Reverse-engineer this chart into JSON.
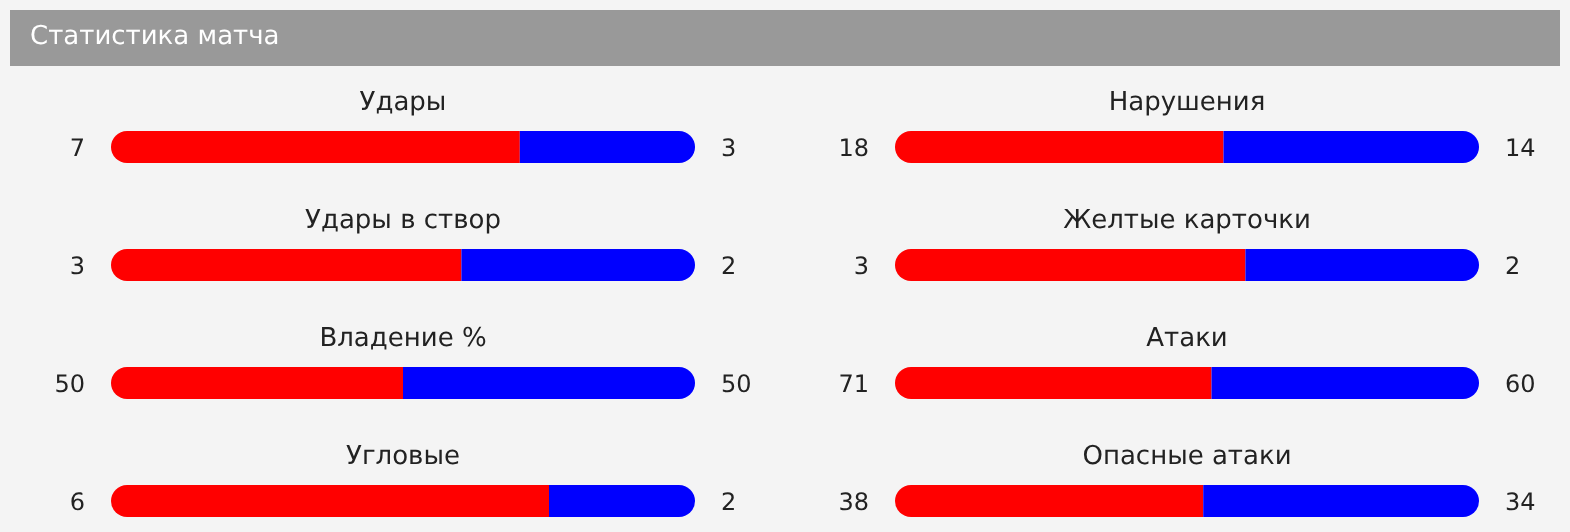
{
  "chart_data": [
    {
      "type": "bar",
      "orientation": "horizontal",
      "stacked": true,
      "data_labels": true,
      "title": "Удары",
      "annotations": [
        "Статистика матча"
      ],
      "categories": [
        null
      ],
      "series": [
        {
          "color": "#ff0000",
          "values": [
            7
          ]
        },
        {
          "color": "#0000ff",
          "values": [
            3
          ]
        }
      ]
    },
    {
      "type": "bar",
      "orientation": "horizontal",
      "stacked": true,
      "data_labels": true,
      "title": "Нарушения",
      "categories": [
        null
      ],
      "series": [
        {
          "color": "#ff0000",
          "values": [
            18
          ]
        },
        {
          "color": "#0000ff",
          "values": [
            14
          ]
        }
      ]
    },
    {
      "type": "bar",
      "orientation": "horizontal",
      "stacked": true,
      "data_labels": true,
      "title": "Удары в створ",
      "categories": [
        null
      ],
      "series": [
        {
          "color": "#ff0000",
          "values": [
            3
          ]
        },
        {
          "color": "#0000ff",
          "values": [
            2
          ]
        }
      ]
    },
    {
      "type": "bar",
      "orientation": "horizontal",
      "stacked": true,
      "data_labels": true,
      "title": "Желтые карточки",
      "categories": [
        null
      ],
      "series": [
        {
          "color": "#ff0000",
          "values": [
            3
          ]
        },
        {
          "color": "#0000ff",
          "values": [
            2
          ]
        }
      ]
    },
    {
      "type": "bar",
      "orientation": "horizontal",
      "stacked": true,
      "data_labels": true,
      "title": "Владение %",
      "categories": [
        null
      ],
      "series": [
        {
          "color": "#ff0000",
          "values": [
            50
          ]
        },
        {
          "color": "#0000ff",
          "values": [
            50
          ]
        }
      ]
    },
    {
      "type": "bar",
      "orientation": "horizontal",
      "stacked": true,
      "data_labels": true,
      "title": "Атаки",
      "categories": [
        null
      ],
      "series": [
        {
          "color": "#ff0000",
          "values": [
            71
          ]
        },
        {
          "color": "#0000ff",
          "values": [
            60
          ]
        }
      ]
    },
    {
      "type": "bar",
      "orientation": "horizontal",
      "stacked": true,
      "data_labels": true,
      "title": "Угловые",
      "categories": [
        null
      ],
      "series": [
        {
          "color": "#ff0000",
          "values": [
            6
          ]
        },
        {
          "color": "#0000ff",
          "values": [
            2
          ]
        }
      ]
    },
    {
      "type": "bar",
      "orientation": "horizontal",
      "stacked": true,
      "data_labels": true,
      "title": "Опасные атаки",
      "categories": [
        null
      ],
      "series": [
        {
          "color": "#ff0000",
          "values": [
            38
          ]
        },
        {
          "color": "#0000ff",
          "values": [
            34
          ]
        }
      ]
    }
  ]
}
